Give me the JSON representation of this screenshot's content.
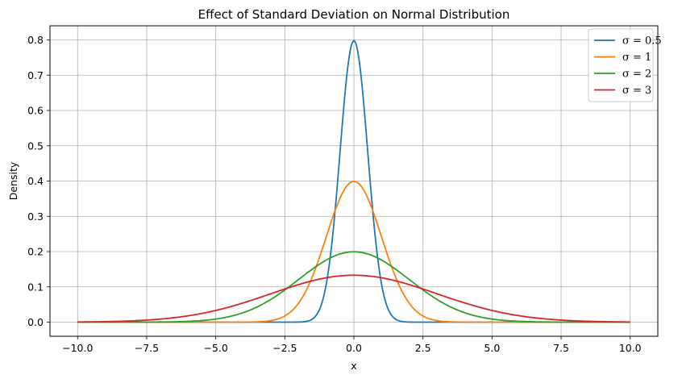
{
  "chart_data": {
    "type": "line",
    "title": "Effect of Standard Deviation on Normal Distribution",
    "xlabel": "x",
    "ylabel": "Density",
    "xlim": [
      -11,
      11
    ],
    "ylim": [
      -0.04,
      0.84
    ],
    "xticks": [
      -10.0,
      -7.5,
      -5.0,
      -2.5,
      0.0,
      2.5,
      5.0,
      7.5,
      10.0
    ],
    "xtick_labels": [
      "−10.0",
      "−7.5",
      "−5.0",
      "−2.5",
      "0.0",
      "2.5",
      "5.0",
      "7.5",
      "10.0"
    ],
    "yticks": [
      0.0,
      0.1,
      0.2,
      0.3,
      0.4,
      0.5,
      0.6,
      0.7,
      0.8
    ],
    "ytick_labels": [
      "0.0",
      "0.1",
      "0.2",
      "0.3",
      "0.4",
      "0.5",
      "0.6",
      "0.7",
      "0.8"
    ],
    "grid": true,
    "legend_position": "top-right",
    "x_domain": [
      -10,
      10
    ],
    "mean": 0,
    "series": [
      {
        "name": "σ = 0.5",
        "sigma": 0.5,
        "color": "#1f77b4"
      },
      {
        "name": "σ = 1",
        "sigma": 1,
        "color": "#ff7f0e"
      },
      {
        "name": "σ = 2",
        "sigma": 2,
        "color": "#2ca02c"
      },
      {
        "name": "σ = 3",
        "sigma": 3,
        "color": "#d62728"
      }
    ]
  }
}
